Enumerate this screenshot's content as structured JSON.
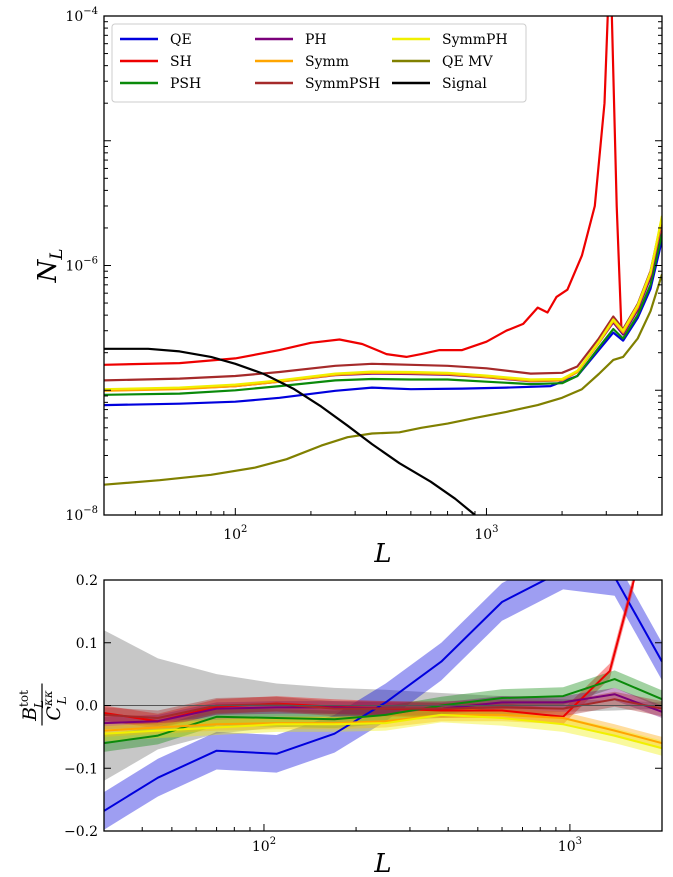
{
  "chart_data": [
    {
      "type": "line",
      "ylabel": "N_L",
      "xlabel": "L",
      "xscale": "log",
      "yscale": "log",
      "xlim": [
        30,
        5000
      ],
      "ylim": [
        1e-08,
        0.0001
      ],
      "xticks": [
        {
          "value": 100,
          "base": "10",
          "exp": "2"
        },
        {
          "value": 1000,
          "base": "10",
          "exp": "3"
        }
      ],
      "yticks": [
        {
          "value": 1e-08,
          "base": "10",
          "exp": "−8"
        },
        {
          "value": 1e-06,
          "base": "10",
          "exp": "−6"
        },
        {
          "value": 0.0001,
          "base": "10",
          "exp": "−4"
        }
      ],
      "legend_position": "top",
      "series": [
        {
          "name": "QE",
          "color": "#0000dd",
          "points": [
            [
              30,
              7.6e-08
            ],
            [
              60,
              7.8e-08
            ],
            [
              100,
              8.1e-08
            ],
            [
              150,
              8.7e-08
            ],
            [
              250,
              9.9e-08
            ],
            [
              350,
              1.05e-07
            ],
            [
              500,
              1.02e-07
            ],
            [
              800,
              1.03e-07
            ],
            [
              1200,
              1.05e-07
            ],
            [
              1800,
              1.08e-07
            ],
            [
              2300,
              1.3e-07
            ],
            [
              2800,
              2.1e-07
            ],
            [
              3200,
              2.9e-07
            ],
            [
              3500,
              2.5e-07
            ],
            [
              4000,
              3.8e-07
            ],
            [
              4500,
              6.5e-07
            ],
            [
              5000,
              1.6e-06
            ]
          ]
        },
        {
          "name": "SH",
          "color": "#ee0000",
          "points": [
            [
              30,
              1.6e-07
            ],
            [
              60,
              1.65e-07
            ],
            [
              100,
              1.8e-07
            ],
            [
              150,
              2.1e-07
            ],
            [
              200,
              2.4e-07
            ],
            [
              260,
              2.55e-07
            ],
            [
              320,
              2.35e-07
            ],
            [
              400,
              1.95e-07
            ],
            [
              480,
              1.85e-07
            ],
            [
              550,
              1.95e-07
            ],
            [
              650,
              2.1e-07
            ],
            [
              800,
              2.1e-07
            ],
            [
              1000,
              2.45e-07
            ],
            [
              1200,
              3e-07
            ],
            [
              1400,
              3.4e-07
            ],
            [
              1600,
              4.6e-07
            ],
            [
              1750,
              4.2e-07
            ],
            [
              1900,
              5.6e-07
            ],
            [
              2100,
              6.4e-07
            ],
            [
              2400,
              1.2e-06
            ],
            [
              2700,
              3e-06
            ],
            [
              2950,
              2e-05
            ],
            [
              3050,
              0.00012
            ],
            [
              3150,
              0.00012
            ],
            [
              3300,
              3e-06
            ],
            [
              3450,
              3e-07
            ],
            [
              3600,
              3.2e-07
            ],
            [
              4000,
              4.5e-07
            ],
            [
              4500,
              8.5e-07
            ],
            [
              5000,
              1.9e-06
            ]
          ]
        },
        {
          "name": "PSH",
          "color": "#0a8a0a",
          "points": [
            [
              30,
              9.2e-08
            ],
            [
              60,
              9.4e-08
            ],
            [
              100,
              1e-07
            ],
            [
              150,
              1.08e-07
            ],
            [
              250,
              1.2e-07
            ],
            [
              350,
              1.23e-07
            ],
            [
              500,
              1.22e-07
            ],
            [
              700,
              1.22e-07
            ],
            [
              1000,
              1.17e-07
            ],
            [
              1500,
              1.12e-07
            ],
            [
              2000,
              1.14e-07
            ],
            [
              2300,
              1.3e-07
            ],
            [
              2800,
              2.2e-07
            ],
            [
              3200,
              3.1e-07
            ],
            [
              3500,
              2.6e-07
            ],
            [
              4000,
              4e-07
            ],
            [
              4500,
              7e-07
            ],
            [
              5000,
              1.8e-06
            ]
          ]
        },
        {
          "name": "PH",
          "color": "#7a007a",
          "points": [
            [
              30,
              1e-07
            ],
            [
              60,
              1.03e-07
            ],
            [
              100,
              1.08e-07
            ],
            [
              150,
              1.17e-07
            ],
            [
              250,
              1.32e-07
            ],
            [
              350,
              1.36e-07
            ],
            [
              500,
              1.35e-07
            ],
            [
              700,
              1.33e-07
            ],
            [
              1000,
              1.27e-07
            ],
            [
              1500,
              1.18e-07
            ],
            [
              2000,
              1.2e-07
            ],
            [
              2300,
              1.4e-07
            ],
            [
              2800,
              2.4e-07
            ],
            [
              3200,
              3.5e-07
            ],
            [
              3500,
              2.8e-07
            ],
            [
              4000,
              4.4e-07
            ],
            [
              4500,
              8e-07
            ],
            [
              5000,
              2.2e-06
            ]
          ]
        },
        {
          "name": "Symm",
          "color": "#ffa500",
          "points": [
            [
              30,
              9.9e-08
            ],
            [
              60,
              1.02e-07
            ],
            [
              100,
              1.08e-07
            ],
            [
              150,
              1.17e-07
            ],
            [
              250,
              1.33e-07
            ],
            [
              350,
              1.38e-07
            ],
            [
              500,
              1.37e-07
            ],
            [
              700,
              1.35e-07
            ],
            [
              1000,
              1.28e-07
            ],
            [
              1500,
              1.19e-07
            ],
            [
              2000,
              1.2e-07
            ],
            [
              2300,
              1.4e-07
            ],
            [
              2800,
              2.4e-07
            ],
            [
              3200,
              3.6e-07
            ],
            [
              3500,
              2.9e-07
            ],
            [
              4000,
              4.6e-07
            ],
            [
              4500,
              8.5e-07
            ],
            [
              5000,
              2.3e-06
            ]
          ]
        },
        {
          "name": "SymmPSH",
          "color": "#a52a2a",
          "points": [
            [
              30,
              1.2e-07
            ],
            [
              60,
              1.24e-07
            ],
            [
              100,
              1.3e-07
            ],
            [
              150,
              1.4e-07
            ],
            [
              250,
              1.57e-07
            ],
            [
              350,
              1.63e-07
            ],
            [
              500,
              1.6e-07
            ],
            [
              700,
              1.57e-07
            ],
            [
              1000,
              1.5e-07
            ],
            [
              1500,
              1.36e-07
            ],
            [
              2000,
              1.38e-07
            ],
            [
              2300,
              1.55e-07
            ],
            [
              2800,
              2.6e-07
            ],
            [
              3200,
              3.9e-07
            ],
            [
              3500,
              3.1e-07
            ],
            [
              4000,
              4.9e-07
            ],
            [
              4500,
              9e-07
            ],
            [
              5000,
              2.4e-06
            ]
          ]
        },
        {
          "name": "SymmPH",
          "color": "#f0f000",
          "points": [
            [
              30,
              1.02e-07
            ],
            [
              60,
              1.05e-07
            ],
            [
              100,
              1.11e-07
            ],
            [
              150,
              1.2e-07
            ],
            [
              250,
              1.36e-07
            ],
            [
              350,
              1.41e-07
            ],
            [
              500,
              1.4e-07
            ],
            [
              700,
              1.38e-07
            ],
            [
              1000,
              1.31e-07
            ],
            [
              1500,
              1.22e-07
            ],
            [
              2000,
              1.23e-07
            ],
            [
              2300,
              1.43e-07
            ],
            [
              2800,
              2.45e-07
            ],
            [
              3200,
              3.7e-07
            ],
            [
              3500,
              3e-07
            ],
            [
              4000,
              4.8e-07
            ],
            [
              4500,
              8.8e-07
            ],
            [
              5000,
              2.5e-06
            ]
          ]
        },
        {
          "name": "QE MV",
          "color": "#808000",
          "points": [
            [
              30,
              1.75e-08
            ],
            [
              50,
              1.9e-08
            ],
            [
              80,
              2.1e-08
            ],
            [
              120,
              2.4e-08
            ],
            [
              160,
              2.8e-08
            ],
            [
              220,
              3.6e-08
            ],
            [
              280,
              4.2e-08
            ],
            [
              350,
              4.5e-08
            ],
            [
              450,
              4.6e-08
            ],
            [
              550,
              5e-08
            ],
            [
              700,
              5.4e-08
            ],
            [
              900,
              6e-08
            ],
            [
              1200,
              6.7e-08
            ],
            [
              1600,
              7.6e-08
            ],
            [
              2000,
              8.7e-08
            ],
            [
              2400,
              1.02e-07
            ],
            [
              2800,
              1.35e-07
            ],
            [
              3200,
              1.75e-07
            ],
            [
              3500,
              1.85e-07
            ],
            [
              4000,
              2.6e-07
            ],
            [
              4500,
              4.3e-07
            ],
            [
              5000,
              8.5e-07
            ]
          ]
        },
        {
          "name": "Signal",
          "color": "#000000",
          "points": [
            [
              30,
              2.15e-07
            ],
            [
              45,
              2.15e-07
            ],
            [
              60,
              2.05e-07
            ],
            [
              80,
              1.85e-07
            ],
            [
              100,
              1.63e-07
            ],
            [
              130,
              1.35e-07
            ],
            [
              170,
              1.03e-07
            ],
            [
              220,
              7.4e-08
            ],
            [
              280,
              5.2e-08
            ],
            [
              350,
              3.7e-08
            ],
            [
              450,
              2.6e-08
            ],
            [
              600,
              1.85e-08
            ],
            [
              750,
              1.35e-08
            ],
            [
              900,
              1e-08
            ]
          ]
        }
      ]
    },
    {
      "type": "line",
      "xlabel": "L",
      "ylabel": "B_L^tot / C_L^κκ",
      "xscale": "log",
      "xlim": [
        30,
        2000
      ],
      "ylim": [
        -0.2,
        0.2
      ],
      "xticks": [
        {
          "value": 100,
          "base": "10",
          "exp": "2"
        },
        {
          "value": 1000,
          "base": "10",
          "exp": "3"
        }
      ],
      "yticks": [
        -0.2,
        -0.1,
        0.0,
        0.1,
        0.2
      ],
      "ytick_labels": [
        "−0.2",
        "−0.1",
        "0.0",
        "0.1",
        "0.2"
      ],
      "zero_line": true,
      "x": [
        30,
        45,
        70,
        110,
        170,
        250,
        380,
        600,
        950,
        1400,
        2000
      ],
      "bands": [
        {
          "name": "Signal",
          "color": "#999999",
          "opacity": 0.55,
          "low": [
            -0.12,
            -0.07,
            -0.045,
            -0.035,
            -0.03,
            -0.025,
            -0.02,
            -0.015,
            -0.01,
            -0.008,
            -0.005
          ],
          "high": [
            0.12,
            0.075,
            0.05,
            0.035,
            0.028,
            0.025,
            0.02,
            0.015,
            0.01,
            0.008,
            0.005
          ]
        }
      ],
      "series": [
        {
          "name": "QE",
          "color": "#0000dd",
          "band": 0.03,
          "values": [
            -0.168,
            -0.115,
            -0.072,
            -0.077,
            -0.045,
            0.005,
            0.07,
            0.165,
            0.215,
            0.205,
            0.07
          ]
        },
        {
          "name": "SH",
          "color": "#ee0000",
          "band": 0.012,
          "xcut": 1620,
          "values": [
            -0.012,
            -0.025,
            -0.002,
            0.003,
            -0.002,
            -0.005,
            -0.008,
            -0.008,
            -0.018,
            0.055,
            0.2
          ],
          "x": [
            30,
            45,
            70,
            110,
            170,
            250,
            380,
            600,
            950,
            1350,
            1620
          ]
        },
        {
          "name": "PSH",
          "color": "#0a8a0a",
          "band": 0.014,
          "values": [
            -0.06,
            -0.048,
            -0.018,
            -0.02,
            -0.022,
            -0.015,
            0.0,
            0.012,
            0.015,
            0.042,
            0.01
          ]
        },
        {
          "name": "PH",
          "color": "#7a007a",
          "band": 0.01,
          "values": [
            -0.028,
            -0.025,
            -0.005,
            -0.003,
            -0.003,
            -0.005,
            -0.005,
            0.005,
            0.005,
            0.018,
            -0.01
          ]
        },
        {
          "name": "Symm",
          "color": "#ffa500",
          "band": 0.01,
          "values": [
            -0.04,
            -0.035,
            -0.03,
            -0.028,
            -0.028,
            -0.025,
            -0.015,
            -0.015,
            -0.02,
            -0.04,
            -0.06
          ]
        },
        {
          "name": "SymmPSH",
          "color": "#a52a2a",
          "band": 0.012,
          "values": [
            -0.015,
            -0.02,
            0.0,
            0.002,
            -0.005,
            -0.005,
            -0.005,
            -0.003,
            -0.005,
            0.01,
            -0.005
          ]
        },
        {
          "name": "SymmPH",
          "color": "#f0f000",
          "band": 0.012,
          "values": [
            -0.045,
            -0.04,
            -0.035,
            -0.03,
            -0.03,
            -0.028,
            -0.015,
            -0.02,
            -0.03,
            -0.048,
            -0.068
          ]
        }
      ]
    }
  ]
}
